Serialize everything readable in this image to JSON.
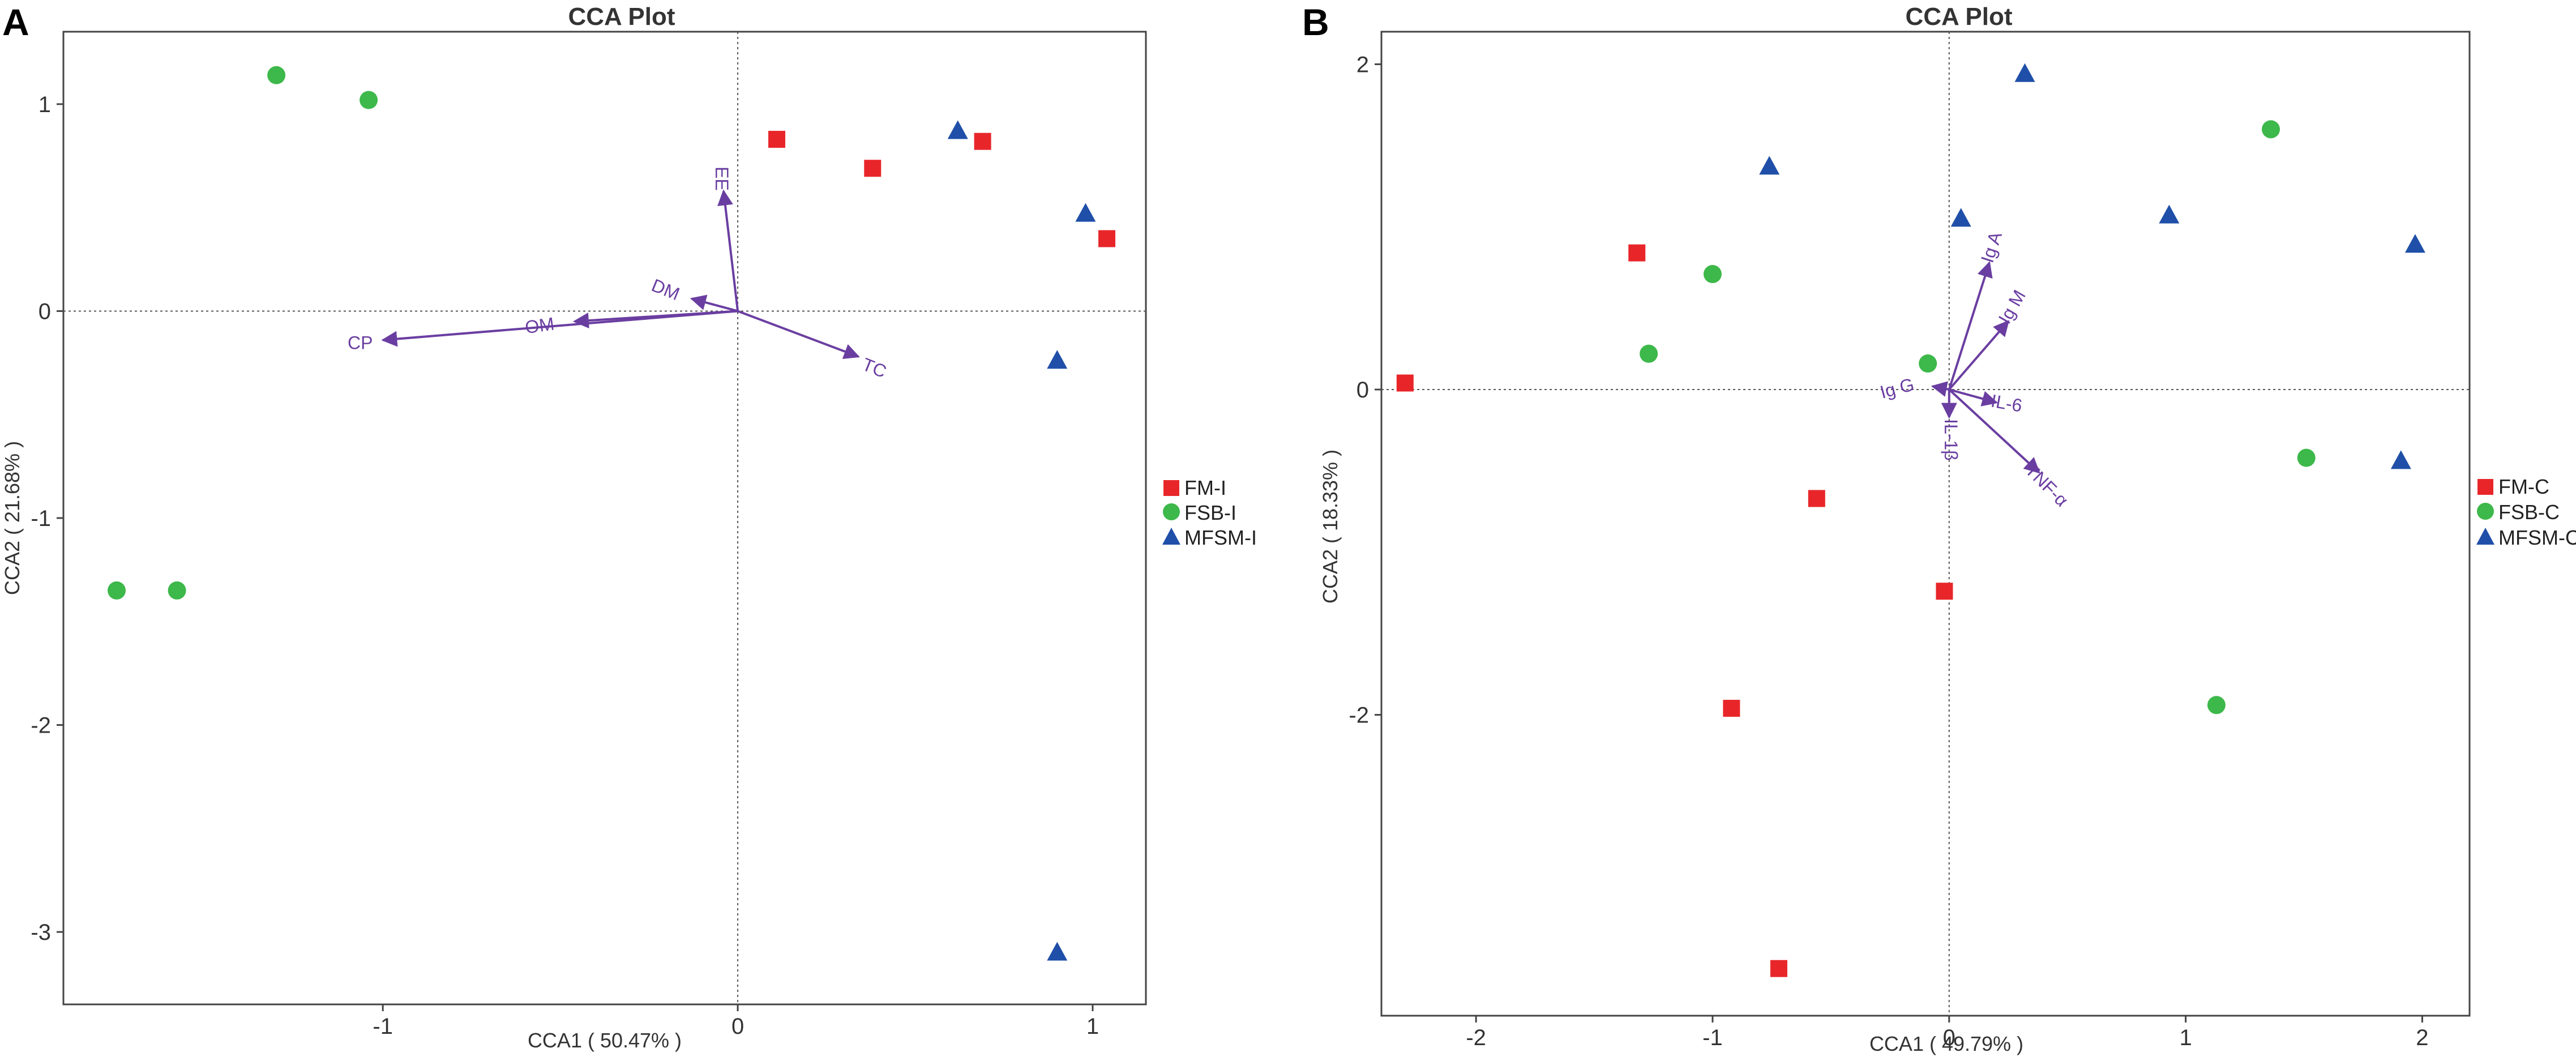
{
  "chart_data": [
    {
      "panel_label": "A",
      "type": "scatter",
      "title": "CCA Plot",
      "xlabel": "CCA1 ( 50.47% )",
      "ylabel": "CCA2 ( 21.68% )",
      "xlim": [
        -1.9,
        1.15
      ],
      "ylim": [
        -3.35,
        1.35
      ],
      "xticks": [
        -1,
        0,
        1
      ],
      "yticks": [
        -3,
        -2,
        -1,
        0,
        1
      ],
      "reference_lines": {
        "x": 0,
        "y": 0
      },
      "legend_position": "right",
      "series": [
        {
          "name": "FM-I",
          "marker": "square",
          "color": "#e8262a",
          "points": [
            [
              0.11,
              0.83
            ],
            [
              0.38,
              0.69
            ],
            [
              0.69,
              0.82
            ],
            [
              1.04,
              0.35
            ]
          ]
        },
        {
          "name": "FSB-I",
          "marker": "circle",
          "color": "#3db84a",
          "points": [
            [
              -1.3,
              1.14
            ],
            [
              -1.04,
              1.02
            ],
            [
              -1.75,
              -1.35
            ],
            [
              -1.58,
              -1.35
            ]
          ]
        },
        {
          "name": "MFSM-I",
          "marker": "triangle",
          "color": "#1f4fa8",
          "points": [
            [
              0.62,
              0.87
            ],
            [
              0.98,
              0.47
            ],
            [
              0.9,
              -0.24
            ],
            [
              0.9,
              -3.1
            ]
          ]
        }
      ],
      "vectors": [
        {
          "name": "EE",
          "x": -0.04,
          "y": 0.58
        },
        {
          "name": "DM",
          "x": -0.13,
          "y": 0.06
        },
        {
          "name": "OM",
          "x": -0.46,
          "y": -0.05
        },
        {
          "name": "CP",
          "x": -1.0,
          "y": -0.14
        },
        {
          "name": "TC",
          "x": 0.34,
          "y": -0.22
        }
      ],
      "vector_color": "#6a3ea1"
    },
    {
      "panel_label": "B",
      "type": "scatter",
      "title": "CCA Plot",
      "xlabel": "CCA1 ( 49.79% )",
      "ylabel": "CCA2 ( 18.33% )",
      "xlim": [
        -2.4,
        2.2
      ],
      "ylim": [
        -3.85,
        2.2
      ],
      "xticks": [
        -2,
        -1,
        0,
        1,
        2
      ],
      "yticks": [
        -2,
        0,
        2
      ],
      "reference_lines": {
        "x": 0,
        "y": 0
      },
      "legend_position": "right",
      "series": [
        {
          "name": "FM-C",
          "marker": "square",
          "color": "#e8262a",
          "points": [
            [
              -2.3,
              0.04
            ],
            [
              -1.32,
              0.84
            ],
            [
              -0.56,
              -0.67
            ],
            [
              -0.02,
              -1.24
            ],
            [
              -0.92,
              -1.96
            ],
            [
              -0.72,
              -3.56
            ]
          ]
        },
        {
          "name": "FSB-C",
          "marker": "circle",
          "color": "#3db84a",
          "points": [
            [
              -1.27,
              0.22
            ],
            [
              -1.0,
              0.71
            ],
            [
              -0.09,
              0.16
            ],
            [
              1.36,
              1.6
            ],
            [
              1.51,
              -0.42
            ],
            [
              1.13,
              -1.94
            ]
          ]
        },
        {
          "name": "MFSM-C",
          "marker": "triangle",
          "color": "#1f4fa8",
          "points": [
            [
              -0.76,
              1.37
            ],
            [
              0.32,
              1.94
            ],
            [
              0.05,
              1.05
            ],
            [
              0.93,
              1.07
            ],
            [
              1.97,
              0.89
            ],
            [
              1.91,
              -0.44
            ]
          ]
        }
      ],
      "vectors": [
        {
          "name": "Ig A",
          "x": 0.17,
          "y": 0.78
        },
        {
          "name": "Ig M",
          "x": 0.25,
          "y": 0.42
        },
        {
          "name": "Ig G",
          "x": -0.07,
          "y": 0.02
        },
        {
          "name": "IL-6",
          "x": 0.2,
          "y": -0.08
        },
        {
          "name": "IL-1β",
          "x": 0.0,
          "y": -0.17
        },
        {
          "name": "TNF-α",
          "x": 0.38,
          "y": -0.51
        }
      ],
      "vector_color": "#6a3ea1"
    }
  ]
}
